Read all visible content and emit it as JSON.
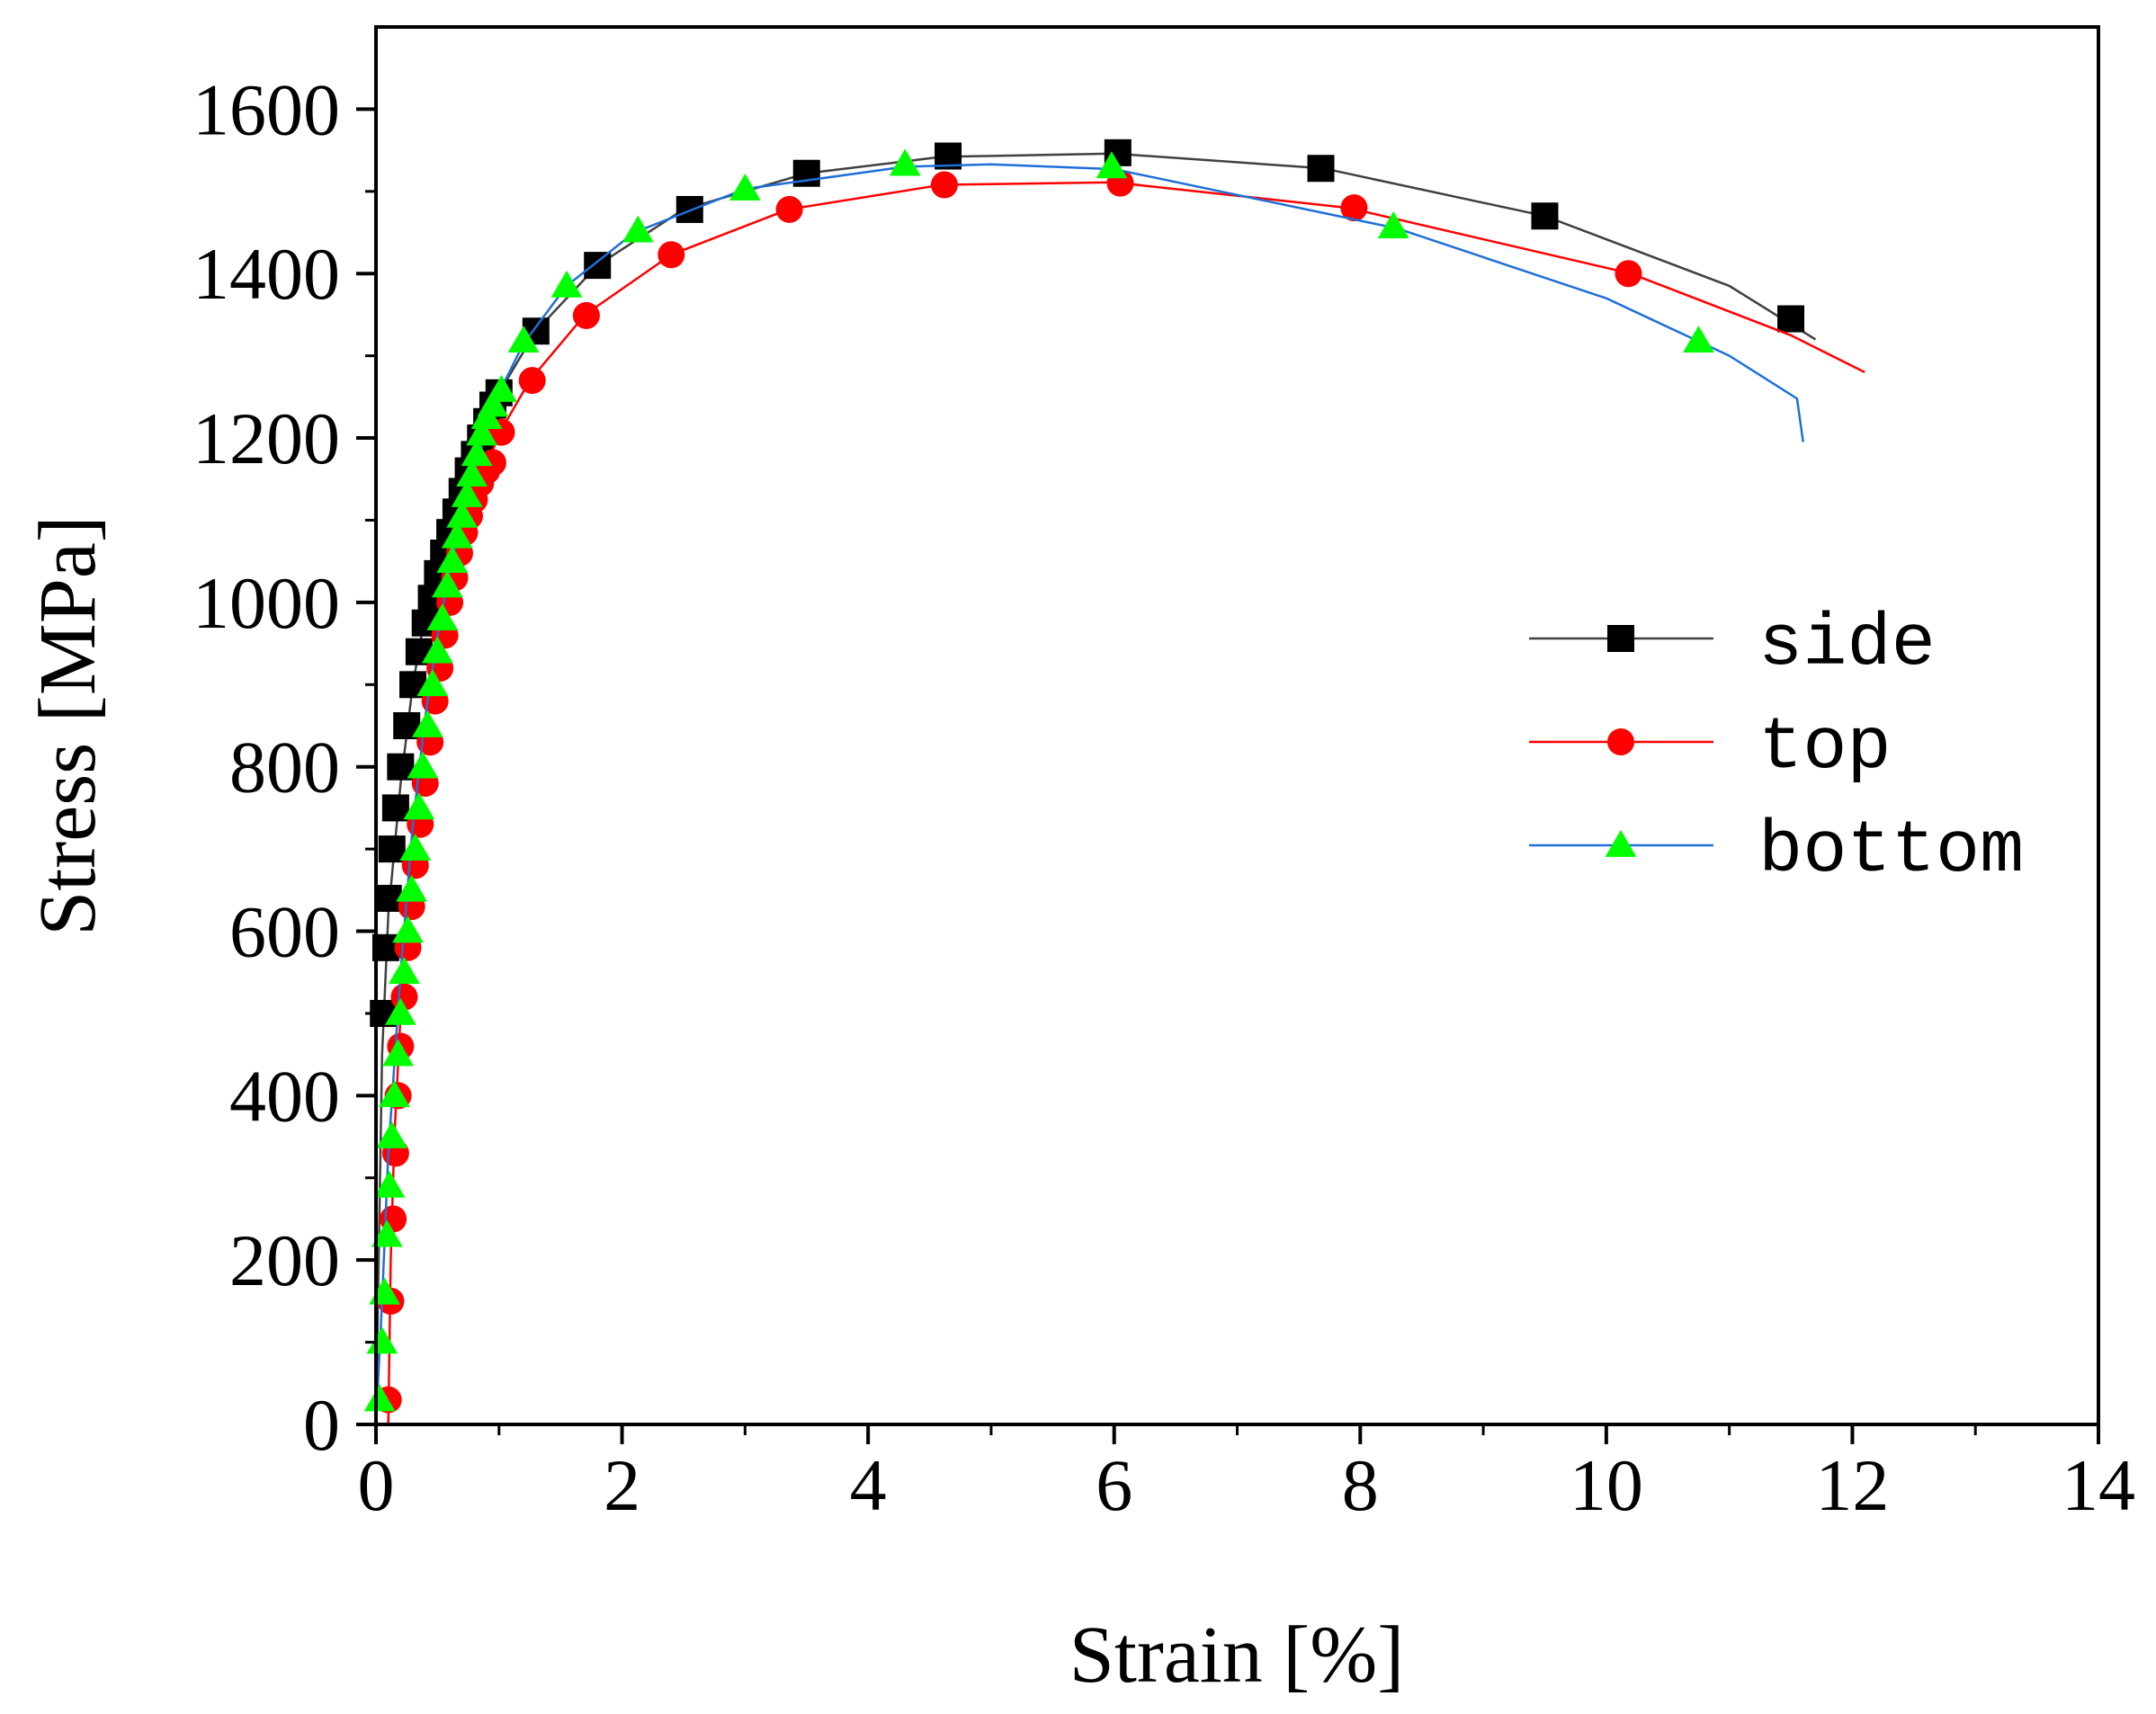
{
  "chart_data": {
    "type": "line",
    "title": "",
    "xlabel": "Strain [%]",
    "ylabel": "Stress [MPa]",
    "xlim": [
      0,
      14
    ],
    "ylim": [
      0,
      1700
    ],
    "xticks": [
      0,
      2,
      4,
      6,
      8,
      10,
      12,
      14
    ],
    "yticks": [
      0,
      200,
      400,
      600,
      800,
      1000,
      1200,
      1400,
      1600
    ],
    "grid": false,
    "legend_position": "right",
    "series": [
      {
        "name": "side",
        "color": "#000000",
        "line_color": "#404040",
        "marker": "square",
        "curve": [
          [
            0,
            0
          ],
          [
            0.05,
            450
          ],
          [
            0.1,
            620
          ],
          [
            0.2,
            780
          ],
          [
            0.3,
            900
          ],
          [
            0.4,
            985
          ],
          [
            0.5,
            1050
          ],
          [
            0.6,
            1100
          ],
          [
            0.7,
            1150
          ],
          [
            0.8,
            1190
          ],
          [
            0.9,
            1220
          ],
          [
            1.0,
            1255
          ],
          [
            1.3,
            1330
          ],
          [
            1.8,
            1410
          ],
          [
            2.5,
            1478
          ],
          [
            3.5,
            1522
          ],
          [
            4.6,
            1542
          ],
          [
            6.0,
            1546
          ],
          [
            7.7,
            1528
          ],
          [
            9.5,
            1470
          ],
          [
            11.0,
            1385
          ],
          [
            11.7,
            1320
          ]
        ],
        "markers": [
          [
            0.06,
            500
          ],
          [
            0.08,
            580
          ],
          [
            0.1,
            640
          ],
          [
            0.13,
            700
          ],
          [
            0.16,
            750
          ],
          [
            0.2,
            800
          ],
          [
            0.25,
            850
          ],
          [
            0.3,
            900
          ],
          [
            0.35,
            940
          ],
          [
            0.4,
            975
          ],
          [
            0.45,
            1005
          ],
          [
            0.5,
            1035
          ],
          [
            0.55,
            1060
          ],
          [
            0.6,
            1085
          ],
          [
            0.65,
            1110
          ],
          [
            0.7,
            1135
          ],
          [
            0.75,
            1160
          ],
          [
            0.8,
            1180
          ],
          [
            0.85,
            1200
          ],
          [
            0.9,
            1220
          ],
          [
            0.95,
            1240
          ],
          [
            1.0,
            1255
          ],
          [
            1.3,
            1330
          ],
          [
            1.8,
            1410
          ],
          [
            2.55,
            1478
          ],
          [
            3.5,
            1522
          ],
          [
            4.65,
            1543
          ],
          [
            6.03,
            1547
          ],
          [
            7.68,
            1528
          ],
          [
            9.5,
            1470
          ],
          [
            11.5,
            1345
          ]
        ]
      },
      {
        "name": "top",
        "color": "#ff0000",
        "line_color": "#ff0000",
        "marker": "circle",
        "curve": [
          [
            0.1,
            0
          ],
          [
            0.12,
            200
          ],
          [
            0.15,
            350
          ],
          [
            0.2,
            500
          ],
          [
            0.3,
            700
          ],
          [
            0.4,
            850
          ],
          [
            0.5,
            960
          ],
          [
            0.6,
            1040
          ],
          [
            0.7,
            1090
          ],
          [
            0.8,
            1130
          ],
          [
            0.9,
            1165
          ],
          [
            1.0,
            1205
          ],
          [
            1.25,
            1270
          ],
          [
            1.7,
            1350
          ],
          [
            2.4,
            1423
          ],
          [
            3.35,
            1478
          ],
          [
            4.6,
            1508
          ],
          [
            6.0,
            1511
          ],
          [
            7.9,
            1480
          ],
          [
            10.2,
            1400
          ],
          [
            11.5,
            1325
          ],
          [
            12.1,
            1280
          ]
        ],
        "markers": [
          [
            0.1,
            30
          ],
          [
            0.12,
            150
          ],
          [
            0.14,
            250
          ],
          [
            0.16,
            330
          ],
          [
            0.18,
            400
          ],
          [
            0.2,
            460
          ],
          [
            0.23,
            520
          ],
          [
            0.26,
            580
          ],
          [
            0.29,
            630
          ],
          [
            0.32,
            680
          ],
          [
            0.36,
            730
          ],
          [
            0.4,
            780
          ],
          [
            0.44,
            830
          ],
          [
            0.48,
            880
          ],
          [
            0.52,
            920
          ],
          [
            0.56,
            960
          ],
          [
            0.6,
            1000
          ],
          [
            0.64,
            1030
          ],
          [
            0.68,
            1060
          ],
          [
            0.72,
            1085
          ],
          [
            0.76,
            1105
          ],
          [
            0.8,
            1125
          ],
          [
            0.85,
            1145
          ],
          [
            0.9,
            1160
          ],
          [
            0.95,
            1170
          ],
          [
            1.02,
            1207
          ],
          [
            1.27,
            1270
          ],
          [
            1.71,
            1349
          ],
          [
            2.4,
            1423
          ],
          [
            3.36,
            1478
          ],
          [
            4.62,
            1508
          ],
          [
            6.05,
            1510
          ],
          [
            7.95,
            1480
          ],
          [
            10.18,
            1400
          ]
        ]
      },
      {
        "name": "bottom",
        "color": "#00ff00",
        "line_color": "#1e6fd9",
        "marker": "triangle",
        "curve": [
          [
            0,
            0
          ],
          [
            0.05,
            150
          ],
          [
            0.1,
            330
          ],
          [
            0.2,
            550
          ],
          [
            0.3,
            730
          ],
          [
            0.4,
            860
          ],
          [
            0.5,
            960
          ],
          [
            0.6,
            1040
          ],
          [
            0.7,
            1100
          ],
          [
            0.8,
            1160
          ],
          [
            0.9,
            1210
          ],
          [
            1.0,
            1255
          ],
          [
            1.2,
            1315
          ],
          [
            1.55,
            1385
          ],
          [
            2.1,
            1450
          ],
          [
            3.0,
            1503
          ],
          [
            4.3,
            1530
          ],
          [
            5.0,
            1533
          ],
          [
            6.0,
            1527
          ],
          [
            8.3,
            1455
          ],
          [
            10.0,
            1370
          ],
          [
            11.0,
            1300
          ],
          [
            11.55,
            1248
          ],
          [
            11.6,
            1195
          ]
        ],
        "markers": [
          [
            0.03,
            30
          ],
          [
            0.05,
            100
          ],
          [
            0.07,
            160
          ],
          [
            0.09,
            230
          ],
          [
            0.11,
            290
          ],
          [
            0.13,
            350
          ],
          [
            0.15,
            400
          ],
          [
            0.18,
            450
          ],
          [
            0.2,
            500
          ],
          [
            0.23,
            550
          ],
          [
            0.26,
            600
          ],
          [
            0.29,
            650
          ],
          [
            0.32,
            700
          ],
          [
            0.35,
            750
          ],
          [
            0.38,
            800
          ],
          [
            0.42,
            850
          ],
          [
            0.46,
            900
          ],
          [
            0.5,
            940
          ],
          [
            0.54,
            980
          ],
          [
            0.58,
            1020
          ],
          [
            0.62,
            1050
          ],
          [
            0.66,
            1080
          ],
          [
            0.7,
            1105
          ],
          [
            0.74,
            1130
          ],
          [
            0.78,
            1155
          ],
          [
            0.82,
            1180
          ],
          [
            0.86,
            1205
          ],
          [
            0.9,
            1225
          ],
          [
            0.95,
            1240
          ],
          [
            1.02,
            1258
          ],
          [
            1.2,
            1318
          ],
          [
            1.55,
            1385
          ],
          [
            2.13,
            1452
          ],
          [
            3.0,
            1503
          ],
          [
            4.3,
            1533
          ],
          [
            5.98,
            1530
          ],
          [
            8.27,
            1457
          ],
          [
            10.75,
            1318
          ]
        ]
      }
    ]
  }
}
